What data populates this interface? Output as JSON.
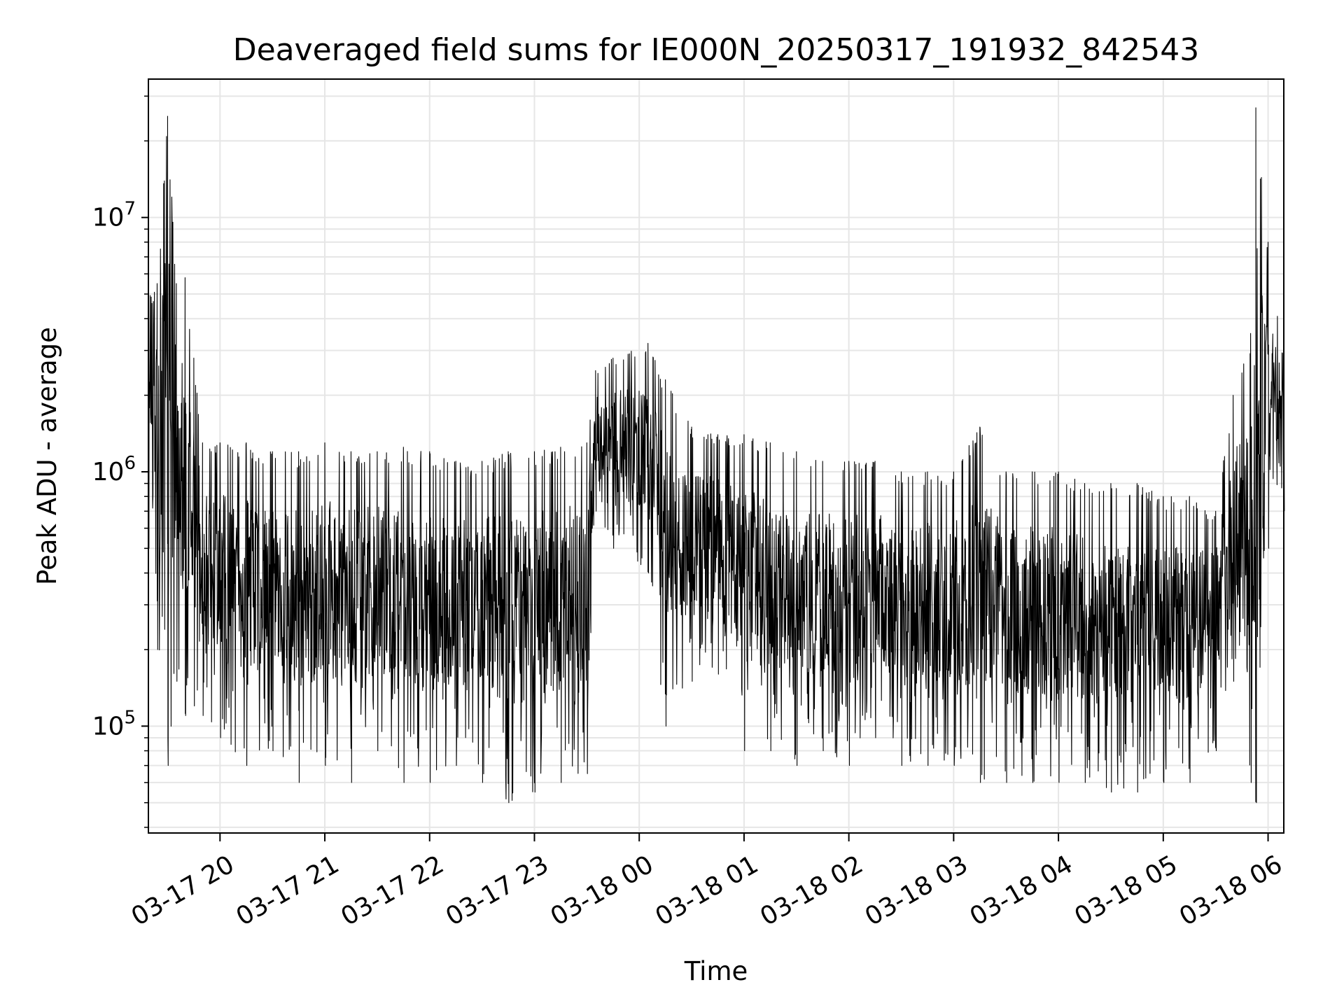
{
  "chart_data": {
    "type": "line",
    "title": "Deaveraged field sums for IE000N_20250317_191932_842543",
    "xlabel": "Time",
    "ylabel": "Peak ADU - average",
    "y_scale": "log",
    "ylim": [
      38000,
      35000000
    ],
    "xlim": [
      "2025-03-17 19:19",
      "2025-03-18 06:09"
    ],
    "grid": true,
    "x_ticks": [
      "03-17 20",
      "03-17 21",
      "03-17 22",
      "03-17 23",
      "03-18 00",
      "03-18 01",
      "03-18 02",
      "03-18 03",
      "03-18 04",
      "03-18 05",
      "03-18 06"
    ],
    "y_ticks": [
      {
        "base": "10",
        "exp": "5"
      },
      {
        "base": "10",
        "exp": "6"
      },
      {
        "base": "10",
        "exp": "7"
      }
    ],
    "series": [
      {
        "color": "#000000",
        "x": [
          "2025-03-17 19:19",
          "2025-03-17 19:24",
          "2025-03-17 19:30",
          "2025-03-17 19:35",
          "2025-03-17 19:40",
          "2025-03-17 19:45",
          "2025-03-17 19:50",
          "2025-03-17 20:00",
          "2025-03-17 20:15",
          "2025-03-17 20:30",
          "2025-03-17 20:45",
          "2025-03-17 21:00",
          "2025-03-17 21:15",
          "2025-03-17 21:30",
          "2025-03-17 21:45",
          "2025-03-17 22:00",
          "2025-03-17 22:15",
          "2025-03-17 22:30",
          "2025-03-17 22:45",
          "2025-03-17 23:00",
          "2025-03-17 23:15",
          "2025-03-17 23:30",
          "2025-03-17 23:35",
          "2025-03-17 23:45",
          "2025-03-18 00:05",
          "2025-03-18 00:15",
          "2025-03-18 00:30",
          "2025-03-18 00:45",
          "2025-03-18 01:00",
          "2025-03-18 01:15",
          "2025-03-18 01:30",
          "2025-03-18 01:45",
          "2025-03-18 02:00",
          "2025-03-18 02:15",
          "2025-03-18 02:30",
          "2025-03-18 02:45",
          "2025-03-18 03:00",
          "2025-03-18 03:15",
          "2025-03-18 03:30",
          "2025-03-18 03:45",
          "2025-03-18 04:00",
          "2025-03-18 04:15",
          "2025-03-18 04:30",
          "2025-03-18 04:45",
          "2025-03-18 05:00",
          "2025-03-18 05:15",
          "2025-03-18 05:30",
          "2025-03-18 05:40",
          "2025-03-18 05:50",
          "2025-03-18 05:53",
          "2025-03-18 06:00",
          "2025-03-18 06:09"
        ],
        "y_max": [
          5000000,
          5500000,
          25000000,
          5500000,
          5800000,
          2800000,
          1300000,
          1300000,
          1300000,
          1200000,
          1200000,
          1300000,
          1200000,
          1200000,
          1250000,
          1200000,
          1100000,
          1100000,
          1200000,
          1200000,
          1250000,
          1300000,
          2500000,
          2800000,
          3200000,
          2300000,
          1500000,
          1400000,
          1400000,
          1300000,
          1200000,
          1100000,
          1100000,
          1100000,
          1000000,
          1000000,
          1000000,
          1500000,
          1000000,
          1000000,
          1000000,
          900000,
          900000,
          900000,
          800000,
          800000,
          700000,
          2000000,
          3500000,
          27000000,
          8000000,
          2800000
        ],
        "y_min": [
          500000,
          200000,
          70000,
          150000,
          110000,
          120000,
          110000,
          90000,
          70000,
          80000,
          60000,
          70000,
          60000,
          80000,
          60000,
          60000,
          70000,
          60000,
          50000,
          55000,
          60000,
          65000,
          700000,
          500000,
          400000,
          100000,
          150000,
          160000,
          80000,
          80000,
          70000,
          80000,
          70000,
          90000,
          70000,
          70000,
          70000,
          60000,
          60000,
          60000,
          60000,
          60000,
          55000,
          55000,
          60000,
          60000,
          80000,
          150000,
          60000,
          50000,
          500000,
          700000
        ]
      }
    ]
  }
}
